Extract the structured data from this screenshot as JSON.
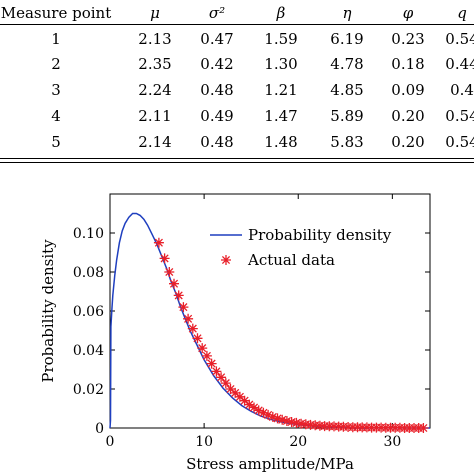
{
  "table": {
    "headers": [
      "Measure point",
      "μ",
      "σ²",
      "β",
      "η",
      "φ",
      "q"
    ],
    "rows": [
      [
        "1",
        "2.13",
        "0.47",
        "1.59",
        "6.19",
        "0.23",
        "0.54"
      ],
      [
        "2",
        "2.35",
        "0.42",
        "1.30",
        "4.78",
        "0.18",
        "0.44"
      ],
      [
        "3",
        "2.24",
        "0.48",
        "1.21",
        "4.85",
        "0.09",
        "0.4"
      ],
      [
        "4",
        "2.11",
        "0.49",
        "1.47",
        "5.89",
        "0.20",
        "0.54"
      ],
      [
        "5",
        "2.14",
        "0.48",
        "1.48",
        "5.83",
        "0.20",
        "0.54"
      ]
    ]
  },
  "chart_data": {
    "type": "line",
    "title": "",
    "xlabel": "Stress amplitude/MPa",
    "ylabel": "Probability density",
    "xlim": [
      0,
      34
    ],
    "ylim": [
      0,
      0.12
    ],
    "xticks": [
      0,
      10,
      20,
      30
    ],
    "yticks": [
      0,
      0.02,
      0.04,
      0.06,
      0.08,
      0.1
    ],
    "xtick_labels": [
      "0",
      "10",
      "20",
      "30"
    ],
    "ytick_labels": [
      "0",
      "0.02",
      "0.04",
      "0.06",
      "0.08",
      "0.10"
    ],
    "grid": false,
    "legend_position": "top-right",
    "series": [
      {
        "name": "Probability density",
        "kind": "line",
        "color": "#1f3fbf",
        "x": [
          0.0,
          0.05,
          0.1,
          0.2,
          0.3,
          0.5,
          0.7,
          1.0,
          1.3,
          1.6,
          2.0,
          2.4,
          2.8,
          3.2,
          3.6,
          4.0,
          4.5,
          5.0,
          5.5,
          6.0,
          6.5,
          7.0,
          7.5,
          8.0,
          8.5,
          9.0,
          9.5,
          10.0,
          11.0,
          12.0,
          13.0,
          14.0,
          15.0,
          16.0,
          17.0,
          18.0,
          19.0,
          20.0,
          22.0,
          24.0,
          26.0,
          28.0,
          30.0,
          32.0,
          34.0
        ],
        "y": [
          0.0,
          0.004,
          0.052,
          0.061,
          0.068,
          0.078,
          0.086,
          0.095,
          0.101,
          0.105,
          0.108,
          0.11,
          0.11,
          0.109,
          0.107,
          0.104,
          0.099,
          0.094,
          0.088,
          0.082,
          0.075,
          0.069,
          0.062,
          0.056,
          0.05,
          0.045,
          0.04,
          0.035,
          0.027,
          0.0205,
          0.0155,
          0.0115,
          0.0085,
          0.0062,
          0.0045,
          0.0033,
          0.0024,
          0.0017,
          0.0009,
          0.0005,
          0.0002,
          0.0001,
          5e-05,
          0.0,
          0.0
        ]
      },
      {
        "name": "Actual data",
        "kind": "scatter",
        "color": "#e8202a",
        "x": [
          5.2,
          5.8,
          6.3,
          6.8,
          7.3,
          7.8,
          8.3,
          8.8,
          9.3,
          9.8,
          10.3,
          10.8,
          11.3,
          11.8,
          12.3,
          12.8,
          13.3,
          13.8,
          14.3,
          14.8,
          15.3,
          15.8,
          16.3,
          16.8,
          17.3,
          17.8,
          18.3,
          18.8,
          19.3,
          19.8,
          20.3,
          20.8,
          21.3,
          21.8,
          22.3,
          22.8,
          23.3,
          23.8,
          24.3,
          24.8,
          25.3,
          25.8,
          26.3,
          26.8,
          27.3,
          27.8,
          28.3,
          28.8,
          29.3,
          29.8,
          30.3,
          30.8,
          31.3,
          31.8,
          32.3,
          32.8,
          33.3
        ],
        "y": [
          0.095,
          0.087,
          0.08,
          0.074,
          0.068,
          0.062,
          0.056,
          0.051,
          0.046,
          0.041,
          0.037,
          0.033,
          0.029,
          0.026,
          0.023,
          0.02,
          0.018,
          0.016,
          0.014,
          0.012,
          0.0105,
          0.009,
          0.0078,
          0.0067,
          0.0057,
          0.0049,
          0.0042,
          0.0036,
          0.0031,
          0.0026,
          0.0022,
          0.0019,
          0.0016,
          0.0014,
          0.0012,
          0.001,
          0.0009,
          0.0008,
          0.0007,
          0.0006,
          0.0005,
          0.0004,
          0.0004,
          0.0003,
          0.0003,
          0.0002,
          0.0002,
          0.0002,
          0.0001,
          0.0001,
          0.0001,
          0.0001,
          0.0,
          0.0,
          0.0,
          0.0,
          0.0
        ]
      }
    ]
  }
}
